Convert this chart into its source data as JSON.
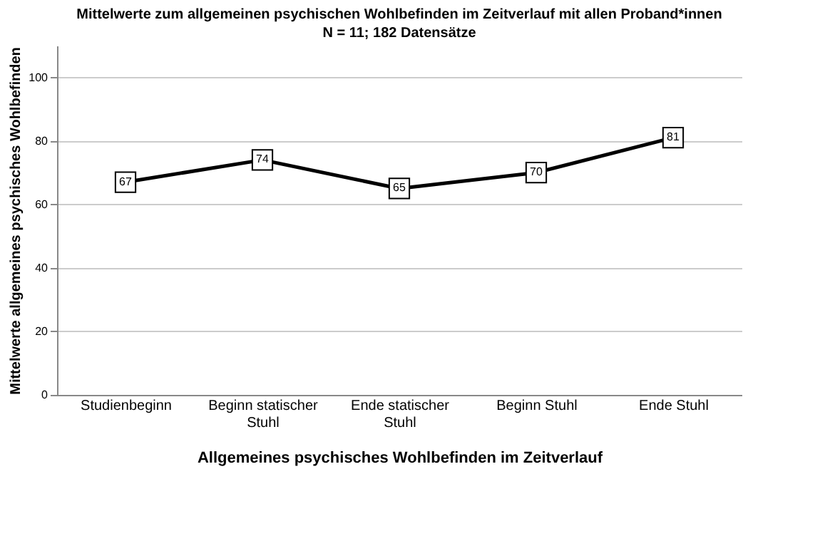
{
  "chart_data": {
    "type": "line",
    "title": "Mittelwerte zum allgemeinen psychischen Wohlbefinden im Zeitverlauf  mit allen Proband*innen",
    "subtitle": "N = 11; 182 Datensätze",
    "xlabel": "Allgemeines psychisches Wohlbefinden im Zeitverlauf",
    "ylabel": "Mittelwerte allgemeines psychisches Wohlbefinden",
    "categories": [
      "Studienbeginn",
      "Beginn statischer Stuhl",
      "Ende statischer Stuhl",
      "Beginn Stuhl",
      "Ende Stuhl"
    ],
    "series": [
      {
        "color": "#000000",
        "values": [
          67,
          74,
          65,
          70,
          81
        ]
      }
    ],
    "ylim": [
      0,
      110
    ],
    "yticks": [
      0,
      20,
      40,
      60,
      80,
      100
    ],
    "grid": "y",
    "marker": "square",
    "line_style": "solid",
    "data_labels": true,
    "legend": false
  }
}
